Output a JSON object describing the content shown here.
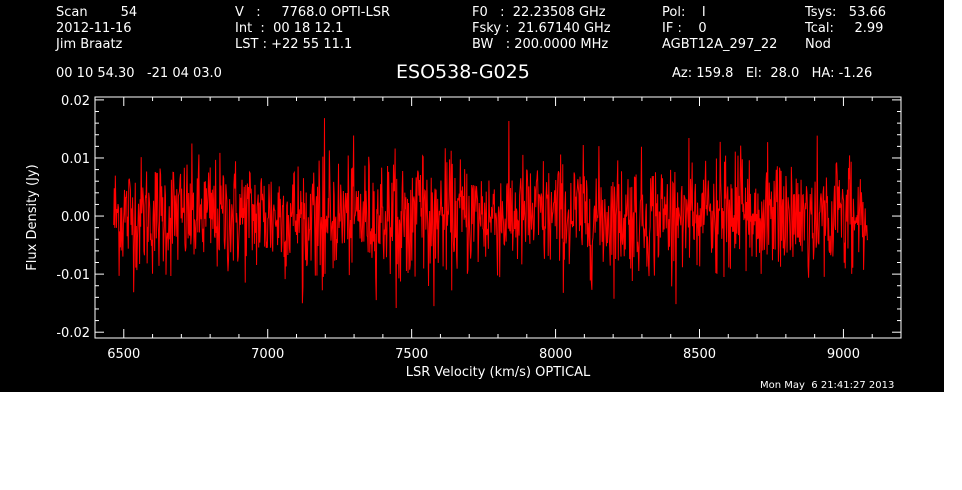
{
  "header": {
    "col1": [
      "Scan        54",
      "2012-11-16",
      "Jim Braatz"
    ],
    "col2": [
      "V   :     7768.0 OPTI-LSR",
      "Int  :  00 18 12.1",
      "LST : +22 55 11.1"
    ],
    "col3": [
      "F0   :  22.23508 GHz",
      "Fsky :  21.67140 GHz",
      "BW   : 200.0000 MHz"
    ],
    "col4": [
      "Pol:    I",
      "IF :    0",
      "AGBT12A_297_22"
    ],
    "col5": [
      "Tsys:   53.66",
      "Tcal:     2.99",
      "Nod"
    ],
    "coords": "00 10 54.30   -21 04 03.0",
    "source": "ESO538-G025",
    "pointing": "Az: 159.8   El:  28.0   HA: -1.26",
    "timestamp": "Mon May  6 21:41:27 2013"
  },
  "colors": {
    "background": "#000000",
    "axes": "#ffffff",
    "trace": "#ff0000"
  },
  "chart_data": {
    "type": "line",
    "xlabel": "LSR Velocity (km/s) OPTICAL",
    "ylabel": "Flux Density (Jy)",
    "xlim": [
      6400,
      9200
    ],
    "ylim": [
      -0.021,
      0.0205
    ],
    "xticks": [
      6500,
      7000,
      7500,
      8000,
      8500,
      9000
    ],
    "yticks": [
      -0.02,
      -0.01,
      0.0,
      0.01,
      0.02
    ],
    "xtick_labels": [
      "6500",
      "7000",
      "7500",
      "8000",
      "8500",
      "9000"
    ],
    "ytick_labels": [
      "-0.02",
      "-0.01",
      "0.00",
      "0.01",
      "0.02"
    ],
    "grid": false,
    "series": [
      {
        "x_start": 6465,
        "x_end": 9085,
        "points": 1400,
        "mean": 0.0,
        "rms": 0.005,
        "min": -0.016,
        "max": 0.017
      }
    ]
  }
}
